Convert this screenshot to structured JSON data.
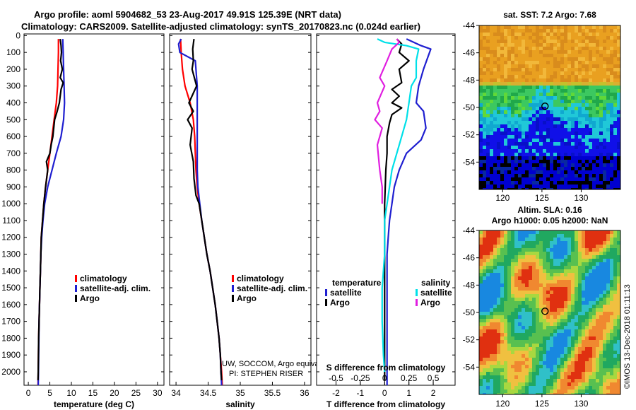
{
  "header": {
    "line1": "Argo profile: aoml 5904682_53 23-Aug-2017 49.91S 125.39E (NRT data)",
    "line2": "Climatology: CARS2009. Satellite-adjusted climatology: synTS_20170823.nc (0.024d earlier)"
  },
  "depth_ticks": [
    "0",
    "100",
    "200",
    "300",
    "400",
    "500",
    "600",
    "700",
    "800",
    "900",
    "1000",
    "1100",
    "1200",
    "1300",
    "1400",
    "1500",
    "1600",
    "1700",
    "1800",
    "1900",
    "2000"
  ],
  "colors": {
    "climatology": "#ff0000",
    "satellite": "#1f1fd0",
    "argo": "#000000",
    "sat_s": "#00e0e8",
    "argo_s": "#e01ee0"
  },
  "chart_data": [
    {
      "type": "line",
      "id": "temperature",
      "xlabel": "temperature (deg C)",
      "xticks": [
        "0",
        "5",
        "10",
        "15",
        "20",
        "25",
        "30"
      ],
      "xlim": [
        -1,
        31.5
      ],
      "ylim": [
        2080,
        -10
      ],
      "legend": [
        "climatology",
        "satellite-adj. clim.",
        "Argo"
      ],
      "series": [
        {
          "name": "climatology",
          "color": "#ff0000",
          "points": [
            [
              7.0,
              20
            ],
            [
              7.0,
              100
            ],
            [
              6.9,
              200
            ],
            [
              6.8,
              300
            ],
            [
              6.5,
              400
            ],
            [
              6.0,
              500
            ],
            [
              5.5,
              600
            ],
            [
              5.0,
              700
            ],
            [
              4.5,
              800
            ],
            [
              4.0,
              900
            ],
            [
              3.6,
              1000
            ],
            [
              3.3,
              1100
            ],
            [
              3.0,
              1200
            ],
            [
              2.9,
              1300
            ],
            [
              2.8,
              1400
            ],
            [
              2.7,
              1500
            ],
            [
              2.6,
              1600
            ],
            [
              2.5,
              1700
            ],
            [
              2.4,
              1800
            ],
            [
              2.35,
              1900
            ],
            [
              2.3,
              2000
            ],
            [
              2.25,
              2080
            ]
          ]
        },
        {
          "name": "satellite-adj. clim.",
          "color": "#1f1fd0",
          "points": [
            [
              8.0,
              20
            ],
            [
              8.1,
              100
            ],
            [
              8.2,
              200
            ],
            [
              8.3,
              300
            ],
            [
              8.4,
              400
            ],
            [
              8.2,
              500
            ],
            [
              7.6,
              600
            ],
            [
              6.5,
              700
            ],
            [
              5.5,
              800
            ],
            [
              4.5,
              900
            ],
            [
              3.8,
              1000
            ],
            [
              3.4,
              1100
            ],
            [
              3.1,
              1200
            ],
            [
              2.9,
              1300
            ],
            [
              2.8,
              1400
            ],
            [
              2.7,
              1500
            ],
            [
              2.6,
              1600
            ],
            [
              2.5,
              1700
            ],
            [
              2.45,
              1800
            ],
            [
              2.4,
              1900
            ],
            [
              2.35,
              2000
            ],
            [
              2.3,
              2080
            ]
          ]
        },
        {
          "name": "Argo",
          "color": "#000000",
          "points": [
            [
              7.4,
              20
            ],
            [
              7.6,
              60
            ],
            [
              7.7,
              100
            ],
            [
              7.5,
              150
            ],
            [
              7.9,
              200
            ],
            [
              7.4,
              250
            ],
            [
              8.1,
              280
            ],
            [
              7.6,
              320
            ],
            [
              7.2,
              400
            ],
            [
              6.7,
              450
            ],
            [
              6.1,
              500
            ],
            [
              5.7,
              600
            ],
            [
              5.3,
              650
            ],
            [
              5.0,
              700
            ],
            [
              4.2,
              750
            ],
            [
              4.5,
              800
            ],
            [
              4.0,
              900
            ],
            [
              3.6,
              1000
            ],
            [
              3.3,
              1100
            ],
            [
              3.0,
              1200
            ],
            [
              2.9,
              1300
            ],
            [
              2.8,
              1400
            ],
            [
              2.7,
              1500
            ],
            [
              2.6,
              1600
            ],
            [
              2.5,
              1700
            ],
            [
              2.4,
              1800
            ],
            [
              2.35,
              1900
            ],
            [
              2.3,
              2000
            ],
            [
              2.25,
              2050
            ]
          ]
        }
      ]
    },
    {
      "type": "line",
      "id": "salinity",
      "xlabel": "salinity",
      "xticks": [
        "34",
        "34.5",
        "35",
        "35.5",
        "36"
      ],
      "xlim": [
        33.9,
        36.1
      ],
      "ylim": [
        2080,
        -10
      ],
      "legend": [
        "climatology",
        "satellite-adj. clim.",
        "Argo"
      ],
      "annotations": [
        "UW, SOCCOM, Argo equivalent",
        "PI: STEPHEN RISER"
      ],
      "series": [
        {
          "name": "climatology",
          "color": "#ff0000",
          "points": [
            [
              34.07,
              20
            ],
            [
              34.08,
              100
            ],
            [
              34.1,
              200
            ],
            [
              34.14,
              300
            ],
            [
              34.22,
              400
            ],
            [
              34.27,
              500
            ],
            [
              34.29,
              600
            ],
            [
              34.3,
              700
            ],
            [
              34.31,
              800
            ],
            [
              34.33,
              900
            ],
            [
              34.36,
              1000
            ],
            [
              34.4,
              1100
            ],
            [
              34.44,
              1200
            ],
            [
              34.48,
              1300
            ],
            [
              34.53,
              1400
            ],
            [
              34.57,
              1500
            ],
            [
              34.61,
              1600
            ],
            [
              34.64,
              1700
            ],
            [
              34.67,
              1800
            ],
            [
              34.69,
              1900
            ],
            [
              34.71,
              2000
            ],
            [
              34.72,
              2080
            ]
          ]
        },
        {
          "name": "satellite-adj. clim.",
          "color": "#1f1fd0",
          "points": [
            [
              34.08,
              20
            ],
            [
              34.04,
              50
            ],
            [
              34.06,
              100
            ],
            [
              34.3,
              150
            ],
            [
              34.33,
              300
            ],
            [
              34.33,
              500
            ],
            [
              34.33,
              700
            ],
            [
              34.33,
              800
            ],
            [
              34.34,
              900
            ],
            [
              34.37,
              1000
            ],
            [
              34.4,
              1100
            ],
            [
              34.44,
              1200
            ],
            [
              34.48,
              1300
            ],
            [
              34.53,
              1400
            ],
            [
              34.57,
              1500
            ],
            [
              34.61,
              1600
            ],
            [
              34.64,
              1700
            ],
            [
              34.67,
              1800
            ],
            [
              34.69,
              1900
            ],
            [
              34.7,
              2000
            ],
            [
              34.71,
              2080
            ]
          ]
        },
        {
          "name": "Argo",
          "color": "#000000",
          "points": [
            [
              34.28,
              20
            ],
            [
              34.26,
              80
            ],
            [
              34.27,
              150
            ],
            [
              34.25,
              200
            ],
            [
              34.32,
              300
            ],
            [
              34.2,
              400
            ],
            [
              34.27,
              450
            ],
            [
              34.18,
              500
            ],
            [
              34.25,
              550
            ],
            [
              34.22,
              650
            ],
            [
              34.27,
              750
            ],
            [
              34.28,
              850
            ],
            [
              34.31,
              950
            ],
            [
              34.36,
              1000
            ],
            [
              34.4,
              1100
            ],
            [
              34.44,
              1200
            ],
            [
              34.48,
              1300
            ],
            [
              34.53,
              1400
            ],
            [
              34.57,
              1500
            ],
            [
              34.61,
              1600
            ],
            [
              34.64,
              1700
            ],
            [
              34.67,
              1800
            ],
            [
              34.69,
              1900
            ],
            [
              34.7,
              2000
            ],
            [
              34.71,
              2050
            ]
          ]
        }
      ]
    },
    {
      "type": "line",
      "id": "difference",
      "xlabel": "T difference from climatology",
      "xlabel2": "S difference from climatology",
      "xticks": [
        "-2",
        "-1",
        "0",
        "1",
        "2"
      ],
      "xticks2": [
        "-0.5",
        "-0.25",
        "0",
        "0.25",
        "0.5"
      ],
      "xlim": [
        -2.8,
        2.9
      ],
      "ylim": [
        2080,
        -10
      ],
      "legend_title_t": "temperature",
      "legend_title_s": "salinity",
      "legend_t": [
        "satellite",
        "Argo"
      ],
      "legend_s": [
        "satellite",
        "Argo"
      ],
      "series": [
        {
          "name": "satellite T",
          "color": "#1f1fd0",
          "points": [
            [
              0.9,
              20
            ],
            [
              1.5,
              60
            ],
            [
              1.9,
              80
            ],
            [
              1.6,
              200
            ],
            [
              1.4,
              300
            ],
            [
              1.3,
              400
            ],
            [
              1.6,
              450
            ],
            [
              1.7,
              550
            ],
            [
              1.5,
              620
            ],
            [
              0.9,
              700
            ],
            [
              0.6,
              800
            ],
            [
              0.4,
              900
            ],
            [
              0.3,
              1000
            ],
            [
              0.2,
              1100
            ],
            [
              0.15,
              1200
            ],
            [
              0.1,
              1300
            ],
            [
              0.1,
              1500
            ],
            [
              0.1,
              1700
            ],
            [
              0.1,
              1900
            ],
            [
              0.1,
              2000
            ],
            [
              0.1,
              2080
            ]
          ]
        },
        {
          "name": "Argo T",
          "color": "#000000",
          "points": [
            [
              0.5,
              20
            ],
            [
              0.7,
              50
            ],
            [
              0.6,
              100
            ],
            [
              1.0,
              150
            ],
            [
              0.6,
              200
            ],
            [
              0.7,
              280
            ],
            [
              0.3,
              320
            ],
            [
              0.6,
              360
            ],
            [
              0.3,
              400
            ],
            [
              0.7,
              430
            ],
            [
              0.3,
              470
            ],
            [
              0.2,
              520
            ],
            [
              0.1,
              600
            ],
            [
              0.1,
              700
            ],
            [
              0.05,
              800
            ],
            [
              0.0,
              1000
            ],
            [
              0.0,
              1200
            ],
            [
              0.0,
              1400
            ],
            [
              0.0,
              1600
            ],
            [
              0.0,
              1800
            ],
            [
              0.0,
              2000
            ],
            [
              0.0,
              2050
            ]
          ]
        },
        {
          "name": "satellite S",
          "color": "#00e0e8",
          "points": [
            [
              -0.3,
              20
            ],
            [
              0.0,
              40
            ],
            [
              0.9,
              60
            ],
            [
              1.4,
              80
            ],
            [
              1.3,
              150
            ],
            [
              1.3,
              250
            ],
            [
              1.1,
              300
            ],
            [
              1.0,
              400
            ],
            [
              0.9,
              500
            ],
            [
              0.7,
              600
            ],
            [
              0.5,
              700
            ],
            [
              0.3,
              800
            ],
            [
              0.2,
              900
            ],
            [
              0.0,
              1100
            ],
            [
              0.0,
              1300
            ],
            [
              -0.1,
              1500
            ],
            [
              -0.1,
              1700
            ],
            [
              -0.05,
              1900
            ],
            [
              0.0,
              2000
            ]
          ]
        },
        {
          "name": "Argo S",
          "color": "#e01ee0",
          "points": [
            [
              0.5,
              20
            ],
            [
              0.6,
              40
            ],
            [
              0.3,
              80
            ],
            [
              0.1,
              150
            ],
            [
              -0.2,
              250
            ],
            [
              0.0,
              300
            ],
            [
              -0.3,
              400
            ],
            [
              -0.2,
              450
            ],
            [
              -0.4,
              500
            ],
            [
              -0.1,
              550
            ],
            [
              -0.3,
              650
            ],
            [
              -0.2,
              800
            ],
            [
              -0.1,
              900
            ],
            [
              -0.1,
              1000
            ]
          ]
        }
      ]
    }
  ],
  "maps": [
    {
      "title1": "sat. SST: 7.2 Argo: 7.68",
      "title2": "",
      "yticks": [
        "-44",
        "-46",
        "-48",
        "-50",
        "-52",
        "-54"
      ],
      "xticks": [
        "120",
        "125",
        "130"
      ],
      "lonlim": [
        117,
        135
      ],
      "latlim": [
        -44,
        -56
      ],
      "marker": {
        "lon": 125.39,
        "lat": -49.91
      },
      "kind": "sst"
    },
    {
      "title1": "Altim. SLA: 0.16",
      "title2": "Argo h1000: 0.05 h2000: NaN",
      "yticks": [
        "-44",
        "-46",
        "-48",
        "-50",
        "-52",
        "-54"
      ],
      "xticks": [
        "120",
        "125",
        "130"
      ],
      "lonlim": [
        117,
        135
      ],
      "latlim": [
        -44,
        -56
      ],
      "marker": {
        "lon": 125.39,
        "lat": -49.91
      },
      "kind": "sla"
    }
  ],
  "footer": {
    "credit": "©IMOS 13-Dec-2018 01:11:13"
  }
}
